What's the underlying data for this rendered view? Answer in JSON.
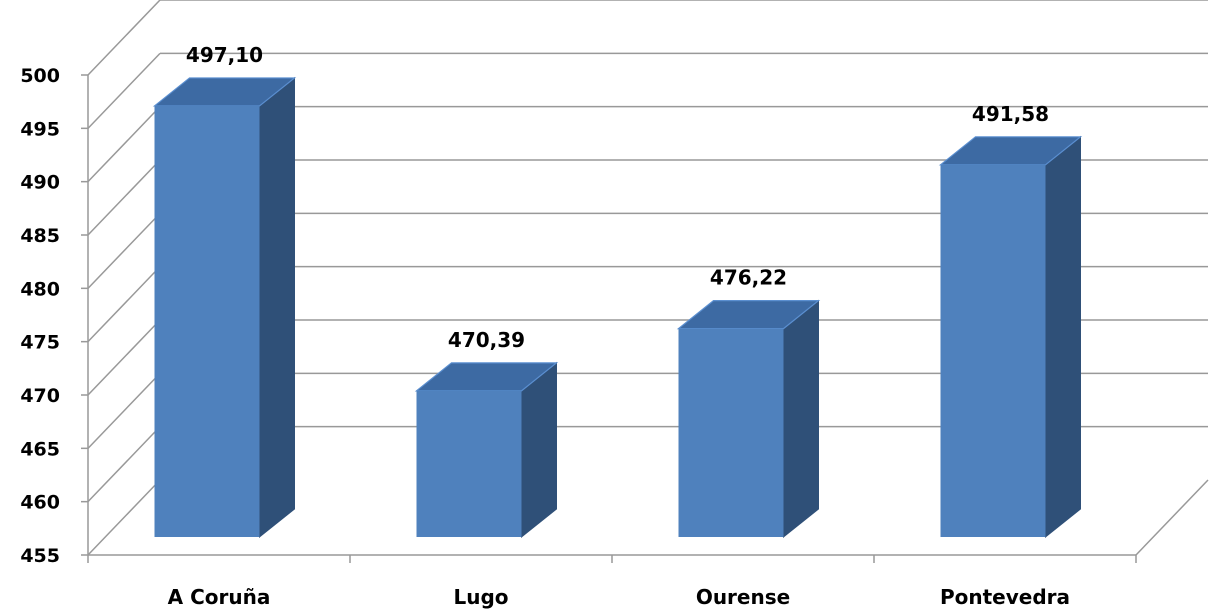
{
  "chart_data": {
    "type": "bar",
    "style": "3d-column",
    "categories": [
      "A Coruña",
      "Lugo",
      "Ourense",
      "Pontevedra"
    ],
    "values": [
      497.1,
      470.39,
      476.22,
      491.58
    ],
    "data_labels": [
      "497,10",
      "470,39",
      "476,22",
      "491,58"
    ],
    "y_ticks": [
      "455",
      "460",
      "465",
      "470",
      "475",
      "480",
      "485",
      "490",
      "495",
      "500"
    ],
    "ylim": [
      455,
      500
    ],
    "grid": true,
    "legend": "none",
    "colors": {
      "bar_front": "#4f81bd",
      "bar_top": "#3d6aa3",
      "bar_side": "#2f5078",
      "gridline": "#999999",
      "wall_line": "#999999"
    }
  }
}
